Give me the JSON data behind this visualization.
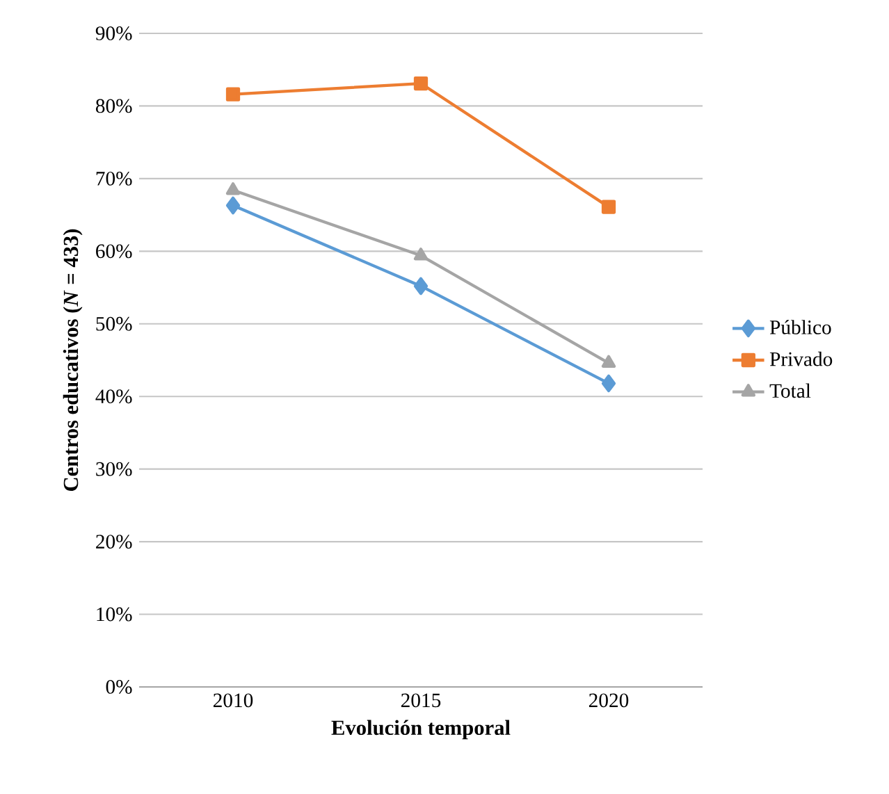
{
  "chart_data": {
    "type": "line",
    "xlabel": "Evolución temporal",
    "ylabel": "Centros educativos (*N* = 433)",
    "categories": [
      "2010",
      "2015",
      "2020"
    ],
    "series": [
      {
        "name": "Público",
        "color": "#5b9bd5",
        "marker": "diamond",
        "values": [
          66.3,
          55.2,
          41.8
        ]
      },
      {
        "name": "Privado",
        "color": "#ed7d31",
        "marker": "square",
        "values": [
          81.6,
          83.1,
          66.1
        ]
      },
      {
        "name": "Total",
        "color": "#a5a5a5",
        "marker": "triangle",
        "values": [
          68.4,
          59.4,
          44.6
        ]
      }
    ],
    "ylim": [
      0,
      90
    ],
    "yticks": [
      {
        "value": 0,
        "label": "0%"
      },
      {
        "value": 10,
        "label": "10%"
      },
      {
        "value": 20,
        "label": "20%"
      },
      {
        "value": 30,
        "label": "30%"
      },
      {
        "value": 40,
        "label": "40%"
      },
      {
        "value": 50,
        "label": "50%"
      },
      {
        "value": 60,
        "label": "60%"
      },
      {
        "value": 70,
        "label": "70%"
      },
      {
        "value": 80,
        "label": "80%"
      },
      {
        "value": 90,
        "label": "90%"
      }
    ],
    "grid": "y",
    "legend": "right",
    "line_style": "solid"
  }
}
